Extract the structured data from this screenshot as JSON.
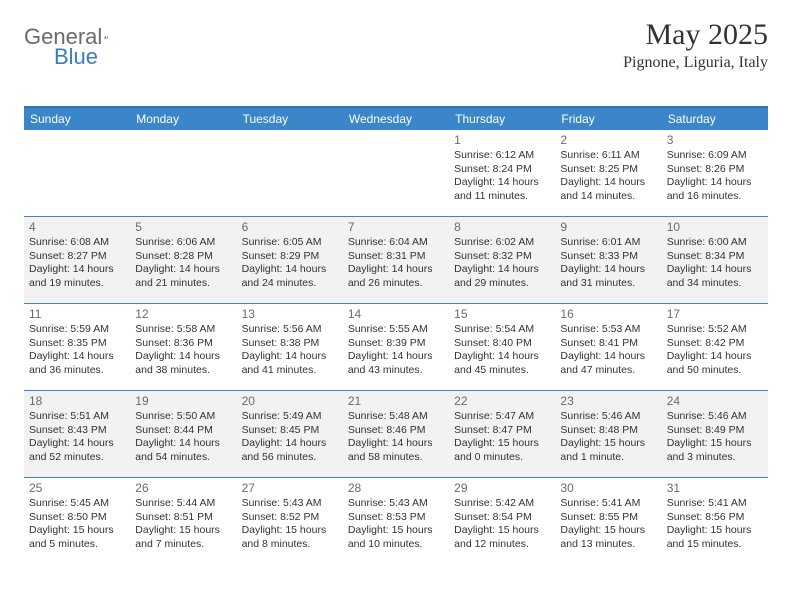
{
  "logo": {
    "word1": "General",
    "word2": "Blue"
  },
  "title": "May 2025",
  "location": "Pignone, Liguria, Italy",
  "colors": {
    "header_bg": "#3a86c8",
    "header_text": "#ffffff",
    "alt_row_bg": "#f2f2f2",
    "border": "#3a86c8",
    "text": "#333333",
    "daynum": "#6b6b6b",
    "logo_gray": "#6b6b6b",
    "logo_blue": "#3a7cc2"
  },
  "day_headers": [
    "Sunday",
    "Monday",
    "Tuesday",
    "Wednesday",
    "Thursday",
    "Friday",
    "Saturday"
  ],
  "weeks": [
    {
      "alt": false,
      "cells": [
        {
          "num": "",
          "sunrise": "",
          "sunset": "",
          "daylight": ""
        },
        {
          "num": "",
          "sunrise": "",
          "sunset": "",
          "daylight": ""
        },
        {
          "num": "",
          "sunrise": "",
          "sunset": "",
          "daylight": ""
        },
        {
          "num": "",
          "sunrise": "",
          "sunset": "",
          "daylight": ""
        },
        {
          "num": "1",
          "sunrise": "Sunrise: 6:12 AM",
          "sunset": "Sunset: 8:24 PM",
          "daylight": "Daylight: 14 hours and 11 minutes."
        },
        {
          "num": "2",
          "sunrise": "Sunrise: 6:11 AM",
          "sunset": "Sunset: 8:25 PM",
          "daylight": "Daylight: 14 hours and 14 minutes."
        },
        {
          "num": "3",
          "sunrise": "Sunrise: 6:09 AM",
          "sunset": "Sunset: 8:26 PM",
          "daylight": "Daylight: 14 hours and 16 minutes."
        }
      ]
    },
    {
      "alt": true,
      "cells": [
        {
          "num": "4",
          "sunrise": "Sunrise: 6:08 AM",
          "sunset": "Sunset: 8:27 PM",
          "daylight": "Daylight: 14 hours and 19 minutes."
        },
        {
          "num": "5",
          "sunrise": "Sunrise: 6:06 AM",
          "sunset": "Sunset: 8:28 PM",
          "daylight": "Daylight: 14 hours and 21 minutes."
        },
        {
          "num": "6",
          "sunrise": "Sunrise: 6:05 AM",
          "sunset": "Sunset: 8:29 PM",
          "daylight": "Daylight: 14 hours and 24 minutes."
        },
        {
          "num": "7",
          "sunrise": "Sunrise: 6:04 AM",
          "sunset": "Sunset: 8:31 PM",
          "daylight": "Daylight: 14 hours and 26 minutes."
        },
        {
          "num": "8",
          "sunrise": "Sunrise: 6:02 AM",
          "sunset": "Sunset: 8:32 PM",
          "daylight": "Daylight: 14 hours and 29 minutes."
        },
        {
          "num": "9",
          "sunrise": "Sunrise: 6:01 AM",
          "sunset": "Sunset: 8:33 PM",
          "daylight": "Daylight: 14 hours and 31 minutes."
        },
        {
          "num": "10",
          "sunrise": "Sunrise: 6:00 AM",
          "sunset": "Sunset: 8:34 PM",
          "daylight": "Daylight: 14 hours and 34 minutes."
        }
      ]
    },
    {
      "alt": false,
      "cells": [
        {
          "num": "11",
          "sunrise": "Sunrise: 5:59 AM",
          "sunset": "Sunset: 8:35 PM",
          "daylight": "Daylight: 14 hours and 36 minutes."
        },
        {
          "num": "12",
          "sunrise": "Sunrise: 5:58 AM",
          "sunset": "Sunset: 8:36 PM",
          "daylight": "Daylight: 14 hours and 38 minutes."
        },
        {
          "num": "13",
          "sunrise": "Sunrise: 5:56 AM",
          "sunset": "Sunset: 8:38 PM",
          "daylight": "Daylight: 14 hours and 41 minutes."
        },
        {
          "num": "14",
          "sunrise": "Sunrise: 5:55 AM",
          "sunset": "Sunset: 8:39 PM",
          "daylight": "Daylight: 14 hours and 43 minutes."
        },
        {
          "num": "15",
          "sunrise": "Sunrise: 5:54 AM",
          "sunset": "Sunset: 8:40 PM",
          "daylight": "Daylight: 14 hours and 45 minutes."
        },
        {
          "num": "16",
          "sunrise": "Sunrise: 5:53 AM",
          "sunset": "Sunset: 8:41 PM",
          "daylight": "Daylight: 14 hours and 47 minutes."
        },
        {
          "num": "17",
          "sunrise": "Sunrise: 5:52 AM",
          "sunset": "Sunset: 8:42 PM",
          "daylight": "Daylight: 14 hours and 50 minutes."
        }
      ]
    },
    {
      "alt": true,
      "cells": [
        {
          "num": "18",
          "sunrise": "Sunrise: 5:51 AM",
          "sunset": "Sunset: 8:43 PM",
          "daylight": "Daylight: 14 hours and 52 minutes."
        },
        {
          "num": "19",
          "sunrise": "Sunrise: 5:50 AM",
          "sunset": "Sunset: 8:44 PM",
          "daylight": "Daylight: 14 hours and 54 minutes."
        },
        {
          "num": "20",
          "sunrise": "Sunrise: 5:49 AM",
          "sunset": "Sunset: 8:45 PM",
          "daylight": "Daylight: 14 hours and 56 minutes."
        },
        {
          "num": "21",
          "sunrise": "Sunrise: 5:48 AM",
          "sunset": "Sunset: 8:46 PM",
          "daylight": "Daylight: 14 hours and 58 minutes."
        },
        {
          "num": "22",
          "sunrise": "Sunrise: 5:47 AM",
          "sunset": "Sunset: 8:47 PM",
          "daylight": "Daylight: 15 hours and 0 minutes."
        },
        {
          "num": "23",
          "sunrise": "Sunrise: 5:46 AM",
          "sunset": "Sunset: 8:48 PM",
          "daylight": "Daylight: 15 hours and 1 minute."
        },
        {
          "num": "24",
          "sunrise": "Sunrise: 5:46 AM",
          "sunset": "Sunset: 8:49 PM",
          "daylight": "Daylight: 15 hours and 3 minutes."
        }
      ]
    },
    {
      "alt": false,
      "cells": [
        {
          "num": "25",
          "sunrise": "Sunrise: 5:45 AM",
          "sunset": "Sunset: 8:50 PM",
          "daylight": "Daylight: 15 hours and 5 minutes."
        },
        {
          "num": "26",
          "sunrise": "Sunrise: 5:44 AM",
          "sunset": "Sunset: 8:51 PM",
          "daylight": "Daylight: 15 hours and 7 minutes."
        },
        {
          "num": "27",
          "sunrise": "Sunrise: 5:43 AM",
          "sunset": "Sunset: 8:52 PM",
          "daylight": "Daylight: 15 hours and 8 minutes."
        },
        {
          "num": "28",
          "sunrise": "Sunrise: 5:43 AM",
          "sunset": "Sunset: 8:53 PM",
          "daylight": "Daylight: 15 hours and 10 minutes."
        },
        {
          "num": "29",
          "sunrise": "Sunrise: 5:42 AM",
          "sunset": "Sunset: 8:54 PM",
          "daylight": "Daylight: 15 hours and 12 minutes."
        },
        {
          "num": "30",
          "sunrise": "Sunrise: 5:41 AM",
          "sunset": "Sunset: 8:55 PM",
          "daylight": "Daylight: 15 hours and 13 minutes."
        },
        {
          "num": "31",
          "sunrise": "Sunrise: 5:41 AM",
          "sunset": "Sunset: 8:56 PM",
          "daylight": "Daylight: 15 hours and 15 minutes."
        }
      ]
    }
  ]
}
